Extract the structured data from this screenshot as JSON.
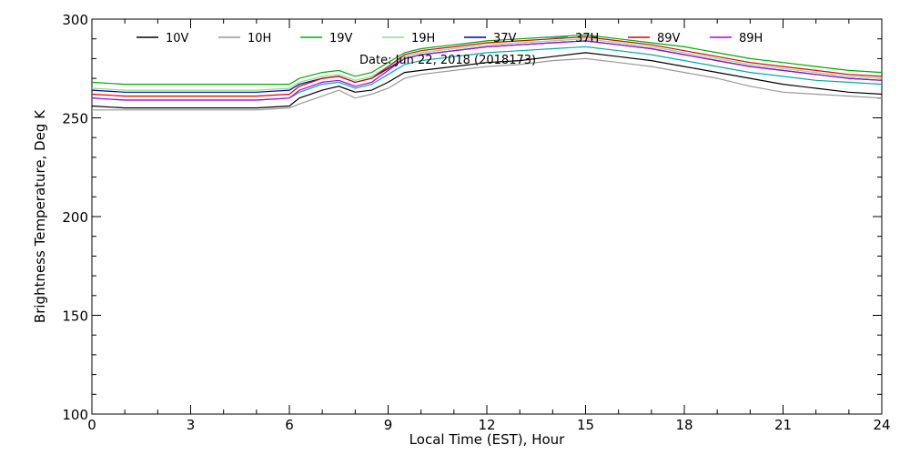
{
  "chart_data": {
    "type": "line",
    "title": "Date: Jun 22, 2018 (2018173)",
    "xlabel": "Local Time (EST), Hour",
    "ylabel": "Brightness Temperature, Deg K",
    "xlim": [
      0,
      24
    ],
    "ylim": [
      100,
      300
    ],
    "xticks": [
      0,
      3,
      6,
      9,
      12,
      15,
      18,
      21,
      24
    ],
    "xtick_labels": [
      "0",
      "3",
      "6",
      "9",
      "12",
      "15",
      "18",
      "21",
      "24"
    ],
    "yticks": [
      100,
      150,
      200,
      250,
      300
    ],
    "ytick_labels": [
      "100",
      "150",
      "200",
      "250",
      "300"
    ],
    "grid": false,
    "legend_position": "top",
    "x": [
      0,
      1,
      2,
      3,
      4,
      5,
      6,
      6.3,
      7,
      7.5,
      8,
      8.5,
      9,
      9.5,
      10,
      11,
      12,
      13,
      14,
      15,
      16,
      17,
      18,
      19,
      20,
      21,
      22,
      23,
      24
    ],
    "series": [
      {
        "name": "10V",
        "color": "#000000",
        "values": [
          256,
          255,
          255,
          255,
          255,
          255,
          256,
          260,
          264,
          266,
          263,
          264,
          268,
          273,
          274,
          276,
          278,
          279,
          281,
          283,
          281,
          279,
          276,
          273,
          270,
          267,
          265,
          263,
          262
        ]
      },
      {
        "name": "10H",
        "color": "#999999",
        "values": [
          254,
          254,
          254,
          254,
          254,
          254,
          255,
          257,
          261,
          264,
          260,
          262,
          265,
          270,
          272,
          274,
          276,
          277,
          279,
          280,
          278,
          276,
          273,
          270,
          266,
          263,
          262,
          261,
          260
        ]
      },
      {
        "name": "19V",
        "color": "#00aa00",
        "values": [
          268,
          267,
          267,
          267,
          267,
          267,
          267,
          270,
          273,
          274,
          271,
          273,
          278,
          283,
          285,
          287,
          289,
          290,
          291,
          292,
          290,
          288,
          286,
          283,
          280,
          278,
          276,
          274,
          273
        ]
      },
      {
        "name": "19H",
        "color": "#88dd88",
        "values": [
          265,
          264,
          264,
          264,
          264,
          264,
          265,
          268,
          271,
          272,
          269,
          271,
          276,
          281,
          283,
          285,
          287,
          288,
          289,
          290,
          288,
          286,
          283,
          280,
          277,
          275,
          273,
          271,
          270
        ]
      },
      {
        "name": "37V",
        "color": "#0000aa",
        "values": [
          264,
          263,
          263,
          263,
          263,
          263,
          264,
          267,
          270,
          271,
          268,
          270,
          275,
          280,
          282,
          284,
          286,
          287,
          288,
          289,
          287,
          285,
          282,
          279,
          276,
          274,
          272,
          270,
          269
        ]
      },
      {
        "name": "37H",
        "color": "#00aaaa",
        "values": [
          260,
          259,
          259,
          259,
          259,
          259,
          260,
          263,
          267,
          268,
          265,
          267,
          272,
          277,
          279,
          281,
          283,
          284,
          285,
          286,
          284,
          282,
          279,
          276,
          273,
          271,
          269,
          268,
          267
        ]
      },
      {
        "name": "89V",
        "color": "#dd0000",
        "values": [
          262,
          261,
          261,
          261,
          261,
          261,
          262,
          266,
          270,
          271,
          268,
          270,
          276,
          282,
          284,
          286,
          288,
          289,
          290,
          291,
          289,
          287,
          284,
          281,
          278,
          276,
          274,
          272,
          271
        ]
      },
      {
        "name": "89H",
        "color": "#aa00dd",
        "values": [
          260,
          259,
          259,
          259,
          259,
          259,
          260,
          264,
          268,
          269,
          266,
          268,
          274,
          280,
          282,
          284,
          286,
          287,
          288,
          289,
          287,
          285,
          282,
          279,
          276,
          274,
          272,
          270,
          269
        ]
      }
    ]
  }
}
